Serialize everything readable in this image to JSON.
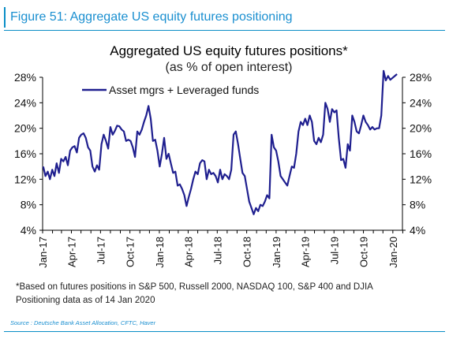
{
  "figure": {
    "label": "Figure 51: Aggregate US equity futures positioning",
    "footnote_1": "*Based on futures positions in S&P 500, Russell 2000, NASDAQ 100, S&P 400 and DJIA",
    "footnote_2": "Positioning data as of 14 Jan 2020",
    "source": "Source : Deutsche Bank Asset Allocation, CFTC, Haver"
  },
  "colors": {
    "accent": "#1a8fd0",
    "series": "#1f1f8f",
    "axis": "#000000"
  },
  "chart_data": {
    "type": "line",
    "title": "Aggregated US equity futures positions*",
    "subtitle": "(as % of open interest)",
    "xlabel": "",
    "ylabel": "",
    "ylim": [
      4,
      28
    ],
    "yticks": [
      "4%",
      "8%",
      "12%",
      "16%",
      "20%",
      "24%",
      "28%"
    ],
    "ytick_values": [
      4,
      8,
      12,
      16,
      20,
      24,
      28
    ],
    "y_axis_both_sides": true,
    "legend_position": "top-left",
    "grid": false,
    "xlim": [
      "2017-01-01",
      "2020-01-31"
    ],
    "xticks": [
      {
        "label": "Jan-17",
        "date": "2017-01-01"
      },
      {
        "label": "Apr-17",
        "date": "2017-04-01"
      },
      {
        "label": "Jul-17",
        "date": "2017-07-01"
      },
      {
        "label": "Oct-17",
        "date": "2017-10-01"
      },
      {
        "label": "Jan-18",
        "date": "2018-01-01"
      },
      {
        "label": "Apr-18",
        "date": "2018-04-01"
      },
      {
        "label": "Jul-18",
        "date": "2018-07-01"
      },
      {
        "label": "Oct-18",
        "date": "2018-10-01"
      },
      {
        "label": "Jan-19",
        "date": "2019-01-01"
      },
      {
        "label": "Apr-19",
        "date": "2019-04-01"
      },
      {
        "label": "Jul-19",
        "date": "2019-07-01"
      },
      {
        "label": "Oct-19",
        "date": "2019-10-01"
      },
      {
        "label": "Jan-20",
        "date": "2020-01-01"
      }
    ],
    "series": [
      {
        "name": "Asset mgrs + Leveraged funds",
        "points": [
          [
            "2017-01-03",
            14.0
          ],
          [
            "2017-01-10",
            12.5
          ],
          [
            "2017-01-17",
            13.2
          ],
          [
            "2017-01-24",
            12.0
          ],
          [
            "2017-01-31",
            13.5
          ],
          [
            "2017-02-07",
            12.5
          ],
          [
            "2017-02-14",
            14.5
          ],
          [
            "2017-02-21",
            13.0
          ],
          [
            "2017-02-28",
            15.2
          ],
          [
            "2017-03-07",
            14.8
          ],
          [
            "2017-03-14",
            15.5
          ],
          [
            "2017-03-21",
            14.2
          ],
          [
            "2017-03-28",
            16.5
          ],
          [
            "2017-04-04",
            17.0
          ],
          [
            "2017-04-11",
            17.2
          ],
          [
            "2017-04-18",
            16.2
          ],
          [
            "2017-04-25",
            18.5
          ],
          [
            "2017-05-02",
            19.0
          ],
          [
            "2017-05-09",
            19.2
          ],
          [
            "2017-05-16",
            18.5
          ],
          [
            "2017-05-23",
            17.0
          ],
          [
            "2017-05-30",
            16.5
          ],
          [
            "2017-06-06",
            14.0
          ],
          [
            "2017-06-13",
            13.2
          ],
          [
            "2017-06-20",
            14.2
          ],
          [
            "2017-06-27",
            13.5
          ],
          [
            "2017-07-04",
            17.5
          ],
          [
            "2017-07-11",
            19.0
          ],
          [
            "2017-07-18",
            18.0
          ],
          [
            "2017-07-25",
            16.8
          ],
          [
            "2017-08-01",
            20.2
          ],
          [
            "2017-08-08",
            19.0
          ],
          [
            "2017-08-15",
            19.6
          ],
          [
            "2017-08-22",
            20.4
          ],
          [
            "2017-08-29",
            20.3
          ],
          [
            "2017-09-05",
            19.8
          ],
          [
            "2017-09-12",
            19.5
          ],
          [
            "2017-09-19",
            18.0
          ],
          [
            "2017-09-26",
            18.2
          ],
          [
            "2017-10-03",
            18.0
          ],
          [
            "2017-10-10",
            17.0
          ],
          [
            "2017-10-17",
            15.5
          ],
          [
            "2017-10-24",
            19.5
          ],
          [
            "2017-10-31",
            19.0
          ],
          [
            "2017-11-07",
            19.8
          ],
          [
            "2017-11-14",
            21.0
          ],
          [
            "2017-11-21",
            22.0
          ],
          [
            "2017-11-28",
            23.5
          ],
          [
            "2017-12-05",
            21.5
          ],
          [
            "2017-12-12",
            18.0
          ],
          [
            "2017-12-19",
            18.2
          ],
          [
            "2017-12-26",
            16.5
          ],
          [
            "2018-01-02",
            14.0
          ],
          [
            "2018-01-09",
            16.0
          ],
          [
            "2018-01-16",
            18.5
          ],
          [
            "2018-01-23",
            15.2
          ],
          [
            "2018-01-30",
            16.0
          ],
          [
            "2018-02-06",
            14.5
          ],
          [
            "2018-02-13",
            13.0
          ],
          [
            "2018-02-20",
            13.2
          ],
          [
            "2018-02-27",
            11.0
          ],
          [
            "2018-03-06",
            11.2
          ],
          [
            "2018-03-13",
            10.5
          ],
          [
            "2018-03-20",
            9.5
          ],
          [
            "2018-03-27",
            7.8
          ],
          [
            "2018-04-03",
            9.2
          ],
          [
            "2018-04-10",
            10.5
          ],
          [
            "2018-04-17",
            12.0
          ],
          [
            "2018-04-24",
            13.2
          ],
          [
            "2018-05-01",
            12.8
          ],
          [
            "2018-05-08",
            14.5
          ],
          [
            "2018-05-15",
            15.0
          ],
          [
            "2018-05-22",
            14.8
          ],
          [
            "2018-05-29",
            12.0
          ],
          [
            "2018-06-05",
            13.5
          ],
          [
            "2018-06-12",
            12.8
          ],
          [
            "2018-06-19",
            13.0
          ],
          [
            "2018-06-26",
            12.5
          ],
          [
            "2018-07-03",
            11.5
          ],
          [
            "2018-07-10",
            13.5
          ],
          [
            "2018-07-17",
            12.0
          ],
          [
            "2018-07-24",
            12.8
          ],
          [
            "2018-07-31",
            12.5
          ],
          [
            "2018-08-07",
            12.0
          ],
          [
            "2018-08-14",
            13.5
          ],
          [
            "2018-08-21",
            19.0
          ],
          [
            "2018-08-28",
            19.5
          ],
          [
            "2018-09-04",
            17.5
          ],
          [
            "2018-09-11",
            15.2
          ],
          [
            "2018-09-18",
            13.0
          ],
          [
            "2018-09-25",
            12.5
          ],
          [
            "2018-10-02",
            10.5
          ],
          [
            "2018-10-09",
            8.5
          ],
          [
            "2018-10-16",
            7.5
          ],
          [
            "2018-10-23",
            6.5
          ],
          [
            "2018-10-30",
            7.5
          ],
          [
            "2018-11-06",
            7.0
          ],
          [
            "2018-11-13",
            8.0
          ],
          [
            "2018-11-20",
            7.8
          ],
          [
            "2018-11-27",
            8.5
          ],
          [
            "2018-12-04",
            9.5
          ],
          [
            "2018-12-11",
            9.0
          ],
          [
            "2018-12-18",
            19.0
          ],
          [
            "2018-12-25",
            17.0
          ],
          [
            "2019-01-01",
            16.5
          ],
          [
            "2019-01-08",
            14.8
          ],
          [
            "2019-01-15",
            12.5
          ],
          [
            "2019-01-22",
            12.0
          ],
          [
            "2019-01-29",
            11.5
          ],
          [
            "2019-02-05",
            11.0
          ],
          [
            "2019-02-12",
            12.5
          ],
          [
            "2019-02-19",
            14.0
          ],
          [
            "2019-02-26",
            13.8
          ],
          [
            "2019-03-05",
            16.0
          ],
          [
            "2019-03-12",
            19.5
          ],
          [
            "2019-03-19",
            21.0
          ],
          [
            "2019-03-26",
            20.5
          ],
          [
            "2019-04-02",
            21.5
          ],
          [
            "2019-04-09",
            20.5
          ],
          [
            "2019-04-16",
            22.0
          ],
          [
            "2019-04-23",
            21.0
          ],
          [
            "2019-04-30",
            18.0
          ],
          [
            "2019-05-07",
            17.5
          ],
          [
            "2019-05-14",
            18.5
          ],
          [
            "2019-05-21",
            17.8
          ],
          [
            "2019-05-28",
            19.0
          ],
          [
            "2019-06-04",
            24.0
          ],
          [
            "2019-06-11",
            23.0
          ],
          [
            "2019-06-18",
            21.0
          ],
          [
            "2019-06-25",
            23.0
          ],
          [
            "2019-07-02",
            22.5
          ],
          [
            "2019-07-09",
            22.8
          ],
          [
            "2019-07-16",
            18.5
          ],
          [
            "2019-07-23",
            15.0
          ],
          [
            "2019-07-30",
            15.2
          ],
          [
            "2019-08-06",
            13.8
          ],
          [
            "2019-08-13",
            17.5
          ],
          [
            "2019-08-20",
            16.5
          ],
          [
            "2019-08-27",
            22.0
          ],
          [
            "2019-09-03",
            21.0
          ],
          [
            "2019-09-10",
            19.5
          ],
          [
            "2019-09-17",
            19.2
          ],
          [
            "2019-09-24",
            20.5
          ],
          [
            "2019-10-01",
            22.0
          ],
          [
            "2019-10-08",
            21.0
          ],
          [
            "2019-10-15",
            20.5
          ],
          [
            "2019-10-22",
            19.8
          ],
          [
            "2019-10-29",
            20.2
          ],
          [
            "2019-11-05",
            19.8
          ],
          [
            "2019-11-12",
            20.0
          ],
          [
            "2019-11-19",
            20.0
          ],
          [
            "2019-11-26",
            22.0
          ],
          [
            "2019-12-03",
            29.0
          ],
          [
            "2019-12-10",
            27.5
          ],
          [
            "2019-12-17",
            28.2
          ],
          [
            "2019-12-24",
            27.6
          ],
          [
            "2020-01-14",
            28.5
          ]
        ]
      }
    ]
  }
}
